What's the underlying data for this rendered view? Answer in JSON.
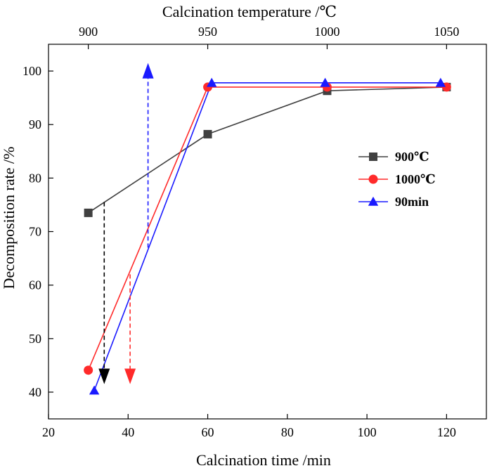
{
  "chart_data": {
    "type": "line",
    "xlabel": "Calcination time /min",
    "ylabel": "Decomposition rate /%",
    "top_xlabel": "Calcination temperature /℃",
    "xlim": [
      20,
      130
    ],
    "ylim": [
      35,
      105
    ],
    "x_ticks": [
      20,
      40,
      60,
      80,
      100,
      120
    ],
    "y_ticks": [
      40,
      50,
      60,
      70,
      80,
      90,
      100
    ],
    "top_ticks": [
      {
        "label": "900",
        "x": 30
      },
      {
        "label": "950",
        "x": 60
      },
      {
        "label": "1000",
        "x": 90
      },
      {
        "label": "1050",
        "x": 120
      }
    ],
    "legend_position": "right",
    "series": [
      {
        "name": "900℃",
        "color": "#404040",
        "marker": "square",
        "points": [
          [
            30,
            73.5
          ],
          [
            60,
            88.2
          ],
          [
            90,
            96.3
          ],
          [
            120,
            97.0
          ]
        ]
      },
      {
        "name": "1000℃",
        "color": "#ff2a2a",
        "marker": "circle",
        "points": [
          [
            30,
            44.1
          ],
          [
            60,
            97.0
          ],
          [
            90,
            97.0
          ],
          [
            120,
            97.0
          ]
        ]
      },
      {
        "name": "90min",
        "color": "#1a1aff",
        "marker": "triangle",
        "points": [
          [
            31.5,
            40.3
          ],
          [
            61,
            97.8
          ],
          [
            89.5,
            97.8
          ],
          [
            118.5,
            97.8
          ]
        ]
      }
    ],
    "annotations": [
      {
        "series": "900℃",
        "color": "#000000",
        "x": 34,
        "y_from": 75.5,
        "y_to": 41.5,
        "direction": "down"
      },
      {
        "series": "1000℃",
        "color": "#ff2a2a",
        "x": 40.5,
        "y_from": 62,
        "y_to": 41.5,
        "direction": "down"
      },
      {
        "series": "90min",
        "color": "#1a1aff",
        "x": 45,
        "y_from": 67,
        "y_to": 101.5,
        "direction": "up"
      }
    ]
  }
}
